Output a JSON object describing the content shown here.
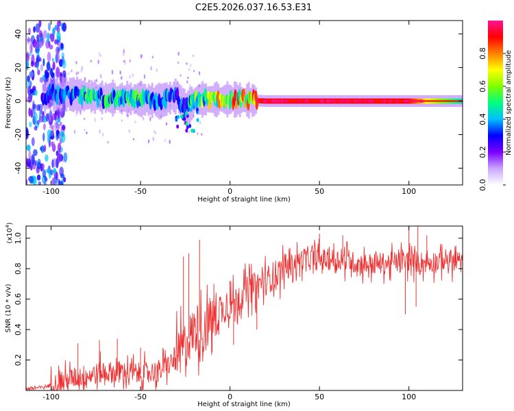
{
  "title": "C2E5.2026.037.16.53.E31",
  "chart_data": [
    {
      "type": "heatmap",
      "name": "spectrogram",
      "xlabel": "Height of straight line (km)",
      "ylabel": "Frequency (Hz)",
      "xlim": [
        -114,
        130
      ],
      "ylim": [
        -50,
        48
      ],
      "xticks": [
        -100,
        -50,
        0,
        50,
        100
      ],
      "xtick_labels": [
        "-100",
        "-50",
        "0",
        "50",
        "100"
      ],
      "yticks": [
        40,
        20,
        0,
        -20,
        -40
      ],
      "ytick_labels": [
        "40",
        "20",
        "0",
        "-20",
        "-40"
      ],
      "colorbar": {
        "label": "Normalized spectral amplitude",
        "range": [
          0,
          1
        ],
        "ticks": [
          0.0,
          0.2,
          0.4,
          0.6,
          0.8
        ],
        "tick_labels": [
          "0.0",
          "0.2",
          "0.4",
          "0.6",
          "0.8"
        ],
        "colors": [
          "#ffffff",
          "#c9a6ff",
          "#7a00ff",
          "#0000ff",
          "#00bfff",
          "#00ff7f",
          "#7fff00",
          "#ffff00",
          "#ff7f00",
          "#ff0000",
          "#ff1493"
        ]
      },
      "ridge": [
        {
          "x": -112,
          "f": 2,
          "amp": 0.1
        },
        {
          "x": -100,
          "f": 4,
          "amp": 0.3
        },
        {
          "x": -90,
          "f": 4,
          "amp": 0.4
        },
        {
          "x": -80,
          "f": 3,
          "amp": 0.45
        },
        {
          "x": -70,
          "f": 2,
          "amp": 0.45
        },
        {
          "x": -60,
          "f": 1.5,
          "amp": 0.45
        },
        {
          "x": -50,
          "f": 1,
          "amp": 0.45
        },
        {
          "x": -40,
          "f": 0,
          "amp": 0.4
        },
        {
          "x": -30,
          "f": 3,
          "amp": 0.35
        },
        {
          "x": -25,
          "f": -5,
          "amp": 0.3
        },
        {
          "x": -20,
          "f": 1,
          "amp": 0.5
        },
        {
          "x": -10,
          "f": 1,
          "amp": 0.6
        },
        {
          "x": 0,
          "f": 1,
          "amp": 0.7
        },
        {
          "x": 10,
          "f": 0.5,
          "amp": 0.8
        },
        {
          "x": 20,
          "f": 0,
          "amp": 0.92
        },
        {
          "x": 60,
          "f": 0,
          "amp": 0.92
        },
        {
          "x": 100,
          "f": 0,
          "amp": 0.9
        },
        {
          "x": 110,
          "f": 0,
          "amp": 0.7
        },
        {
          "x": 130,
          "f": 0,
          "amp": 0.45
        }
      ]
    },
    {
      "type": "line",
      "name": "snr",
      "xlabel": "Height of straight line (km)",
      "ylabel": "SNR (10 * v/v)",
      "scale_label": "(x10",
      "scale_exp": "4",
      "scale_close": ")",
      "xlim": [
        -114,
        130
      ],
      "ylim": [
        0,
        1.08
      ],
      "xticks": [
        -100,
        -50,
        0,
        50,
        100
      ],
      "xtick_labels": [
        "-100",
        "-50",
        "0",
        "50",
        "100"
      ],
      "yticks": [
        1.0,
        0.8,
        0.6,
        0.4,
        0.2
      ],
      "ytick_labels": [
        "1.0",
        "0.8",
        "0.6",
        "0.4",
        "0.2"
      ],
      "color": "#f03030",
      "trend": [
        {
          "x": -114,
          "y": 0.01
        },
        {
          "x": -105,
          "y": 0.02
        },
        {
          "x": -95,
          "y": 0.05
        },
        {
          "x": -85,
          "y": 0.09
        },
        {
          "x": -70,
          "y": 0.12
        },
        {
          "x": -60,
          "y": 0.12
        },
        {
          "x": -50,
          "y": 0.11
        },
        {
          "x": -40,
          "y": 0.13
        },
        {
          "x": -30,
          "y": 0.2
        },
        {
          "x": -25,
          "y": 0.3
        },
        {
          "x": -20,
          "y": 0.4
        },
        {
          "x": -15,
          "y": 0.38
        },
        {
          "x": -10,
          "y": 0.48
        },
        {
          "x": 0,
          "y": 0.56
        },
        {
          "x": 10,
          "y": 0.66
        },
        {
          "x": 20,
          "y": 0.72
        },
        {
          "x": 30,
          "y": 0.8
        },
        {
          "x": 40,
          "y": 0.86
        },
        {
          "x": 50,
          "y": 0.86
        },
        {
          "x": 60,
          "y": 0.86
        },
        {
          "x": 70,
          "y": 0.84
        },
        {
          "x": 80,
          "y": 0.83
        },
        {
          "x": 90,
          "y": 0.84
        },
        {
          "x": 100,
          "y": 0.85
        },
        {
          "x": 110,
          "y": 0.84
        },
        {
          "x": 120,
          "y": 0.86
        },
        {
          "x": 130,
          "y": 0.84
        }
      ],
      "spikes": [
        {
          "x": -85,
          "y": 0.31
        },
        {
          "x": -73,
          "y": 0.33
        },
        {
          "x": -63,
          "y": 0.34
        },
        {
          "x": -50,
          "y": 0.28
        },
        {
          "x": -26,
          "y": 0.88
        },
        {
          "x": -23,
          "y": 0.9
        },
        {
          "x": -17,
          "y": 0.99
        },
        {
          "x": -9,
          "y": 0.7
        },
        {
          "x": 0,
          "y": 0.72
        },
        {
          "x": 50,
          "y": 1.03
        },
        {
          "x": 63,
          "y": 1.02
        },
        {
          "x": 100,
          "y": 1.08
        },
        {
          "x": 105,
          "y": 1.08
        },
        {
          "x": 110,
          "y": 1.02
        }
      ],
      "dips": [
        {
          "x": -10,
          "y": 0.25
        },
        {
          "x": 2,
          "y": 0.3
        },
        {
          "x": 15,
          "y": 0.4
        },
        {
          "x": 98,
          "y": 0.5
        },
        {
          "x": 104,
          "y": 0.55
        }
      ]
    }
  ]
}
